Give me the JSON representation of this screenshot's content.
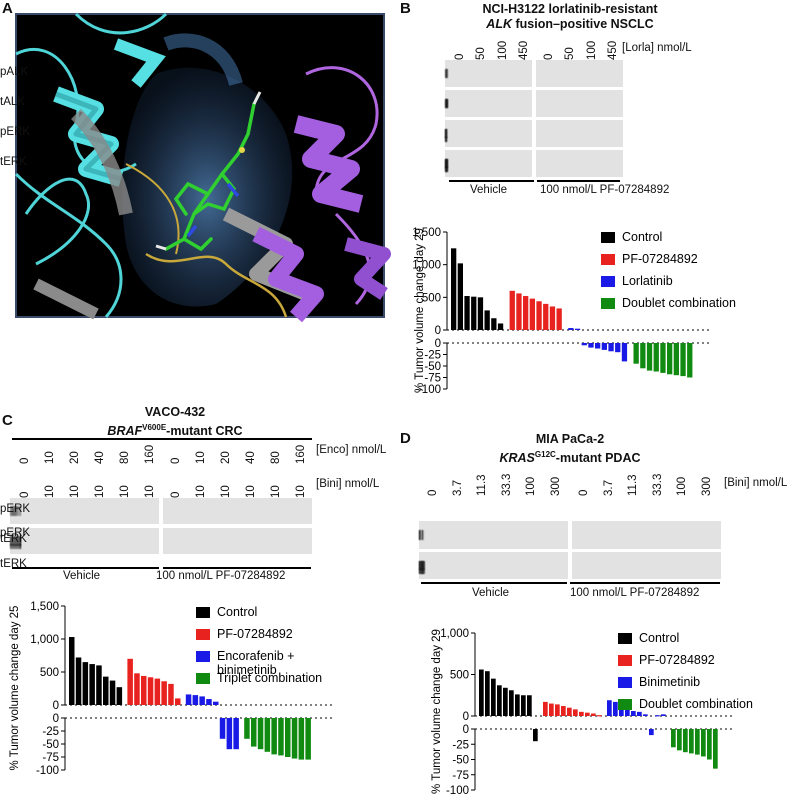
{
  "panels": {
    "A": {
      "letter": "A"
    },
    "B": {
      "letter": "B",
      "title_line1": "NCI-H3122 lorlatinib-resistant",
      "title_gene": "ALK",
      "title_line2_rest": " fusion–positive NSCLC",
      "dose_labels": [
        "0",
        "50",
        "100",
        "450",
        "0",
        "50",
        "100",
        "450"
      ],
      "dose_axis_label": "[Lorla] nmol/L",
      "bands": [
        "pALK",
        "tALK",
        "pERK",
        "tERK"
      ],
      "group_vehicle": "Vehicle",
      "group_treat": "100 nmol/L PF-07284892"
    },
    "C": {
      "letter": "C",
      "title_line1": "VACO-432",
      "title_gene": "BRAF",
      "title_sup": "V600E",
      "title_line2_rest": "-mutant CRC",
      "enco_labels": [
        "0",
        "10",
        "20",
        "40",
        "80",
        "160",
        "0",
        "10",
        "20",
        "40",
        "80",
        "160"
      ],
      "enco_axis_label": "[Enco] nmol/L",
      "bini_labels": [
        "0",
        "10",
        "10",
        "10",
        "10",
        "10",
        "0",
        "10",
        "10",
        "10",
        "10",
        "10"
      ],
      "bini_axis_label": "[Bini] nmol/L",
      "bands": [
        "pERK",
        "tERK"
      ],
      "group_vehicle": "Vehicle",
      "group_treat": "100 nmol/L PF-07284892"
    },
    "D": {
      "letter": "D",
      "title_line1": "MIA PaCa-2",
      "title_gene": "KRAS",
      "title_sup": "G12C",
      "title_line2_rest": "-mutant PDAC",
      "dose_labels": [
        "0",
        "3.7",
        "11.3",
        "33.3",
        "100",
        "300",
        "0",
        "3.7",
        "11.3",
        "33.3",
        "100",
        "300"
      ],
      "dose_axis_label": "[Bini] nmol/L",
      "bands": [
        "pERK",
        "tERK"
      ],
      "group_vehicle": "Vehicle",
      "group_treat": "100 nmol/L PF-07284892"
    }
  },
  "colors": {
    "control": "#000000",
    "pf": "#e8231f",
    "single": "#1a1ae6",
    "combo": "#108a10"
  },
  "chart_data": [
    {
      "id": "B",
      "type": "bar",
      "ylabel": "% Tumor volume change day 29",
      "upper_ticks": [
        "1,500",
        "1,000",
        "500",
        "0"
      ],
      "lower_ticks": [
        "0",
        "-25",
        "-50",
        "-75",
        "-100"
      ],
      "ylim_upper": [
        0,
        1500
      ],
      "ylim_lower": [
        -100,
        0
      ],
      "legend": [
        "Control",
        "PF-07284892",
        "Lorlatinib",
        "Doublet combination"
      ],
      "series": [
        {
          "name": "Control",
          "values": [
            1250,
            1020,
            520,
            510,
            500,
            300,
            180,
            100
          ]
        },
        {
          "name": "PF-07284892",
          "values": [
            600,
            560,
            520,
            480,
            440,
            400,
            360,
            330
          ]
        },
        {
          "name": "Lorlatinib",
          "values": [
            30,
            20,
            -5,
            -10,
            -12,
            -15,
            -18,
            -20,
            -40
          ]
        },
        {
          "name": "Doublet combination",
          "values": [
            -45,
            -55,
            -60,
            -62,
            -65,
            -68,
            -70,
            -72,
            -75
          ]
        }
      ]
    },
    {
      "id": "C",
      "type": "bar",
      "ylabel": "% Tumor volume change day 25",
      "upper_ticks": [
        "1,500",
        "1,000",
        "500",
        "0"
      ],
      "lower_ticks": [
        "0",
        "-25",
        "-50",
        "-75",
        "-100"
      ],
      "ylim_upper": [
        0,
        1500
      ],
      "ylim_lower": [
        -100,
        0
      ],
      "legend": [
        "Control",
        "PF-07284892",
        "Encorafenib + binimetinib",
        "Triplet combination"
      ],
      "series": [
        {
          "name": "Control",
          "values": [
            1030,
            720,
            650,
            620,
            600,
            430,
            370,
            270
          ]
        },
        {
          "name": "PF-07284892",
          "values": [
            700,
            480,
            440,
            420,
            400,
            360,
            320,
            100
          ]
        },
        {
          "name": "Encorafenib + binimetinib",
          "values": [
            160,
            150,
            130,
            90,
            50,
            -40,
            -60,
            -60
          ]
        },
        {
          "name": "Triplet combination",
          "values": [
            -40,
            -55,
            -60,
            -65,
            -70,
            -72,
            -75,
            -78,
            -80,
            -80
          ]
        }
      ]
    },
    {
      "id": "D",
      "type": "bar",
      "ylabel": "% Tumor volume change day 29",
      "upper_ticks": [
        "1,000",
        "500",
        "0"
      ],
      "lower_ticks": [
        "0",
        "-25",
        "-50",
        "-75",
        "-100"
      ],
      "ylim_upper": [
        0,
        1000
      ],
      "ylim_lower": [
        -100,
        0
      ],
      "legend": [
        "Control",
        "PF-07284892",
        "Binimetinib",
        "Doublet combination"
      ],
      "series": [
        {
          "name": "Control",
          "values": [
            560,
            540,
            450,
            370,
            340,
            310,
            260,
            250,
            250,
            -20
          ]
        },
        {
          "name": "PF-07284892",
          "values": [
            170,
            150,
            140,
            120,
            100,
            80,
            50,
            40,
            30,
            10
          ]
        },
        {
          "name": "Binimetinib",
          "values": [
            190,
            170,
            100,
            80,
            60,
            50,
            20,
            -10,
            10,
            20
          ]
        },
        {
          "name": "Doublet combination",
          "values": [
            -30,
            -35,
            -38,
            -40,
            -42,
            -45,
            -50,
            -65
          ]
        }
      ]
    }
  ]
}
